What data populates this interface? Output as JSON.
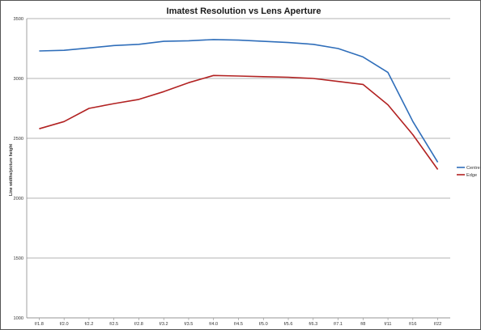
{
  "chart_data": {
    "type": "line",
    "title": "Imatest Resolution vs Lens Aperture",
    "xlabel": "",
    "ylabel": "Line widths/picture height",
    "categories": [
      "f/1.8",
      "f/2.0",
      "f/2.2",
      "f/2.5",
      "f/2.8",
      "f/3.2",
      "f/3.5",
      "f/4.0",
      "f/4.5",
      "f/5.0",
      "f/5.6",
      "f/6.3",
      "f/7.1",
      "f/8",
      "f/11",
      "f/16",
      "f/22"
    ],
    "ylim": [
      1000,
      3500
    ],
    "yticks": [
      1000,
      1500,
      2000,
      2500,
      3000,
      3500
    ],
    "grid": true,
    "legend_position": "right",
    "series": [
      {
        "name": "Centre",
        "color": "#2f6eba",
        "values": [
          3230,
          3235,
          3255,
          3275,
          3285,
          3310,
          3315,
          3325,
          3320,
          3310,
          3300,
          3285,
          3250,
          3180,
          3050,
          2640,
          2300
        ]
      },
      {
        "name": "Edge",
        "color": "#b22222",
        "values": [
          2580,
          2640,
          2750,
          2790,
          2825,
          2890,
          2965,
          3025,
          3020,
          3015,
          3010,
          3000,
          2975,
          2950,
          2780,
          2530,
          2240
        ]
      }
    ]
  }
}
